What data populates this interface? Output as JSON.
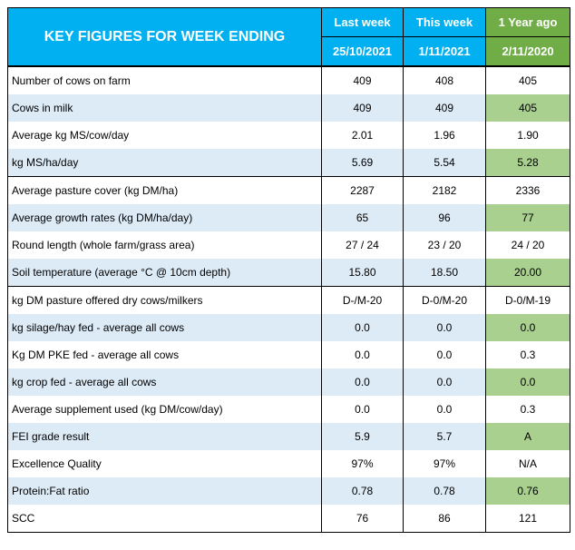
{
  "header": {
    "title": "KEY FIGURES FOR WEEK ENDING",
    "col_last": "Last week",
    "col_this": "This week",
    "col_year": "1 Year ago",
    "date_last": "25/10/2021",
    "date_this": "1/11/2021",
    "date_year": "2/11/2020"
  },
  "colors": {
    "header_blue": "#00b0f0",
    "header_green": "#70ad47",
    "row_alt_blue": "#ddebf7",
    "row_alt_green": "#a9d08e"
  },
  "rows": [
    {
      "label": "Number of cows on farm",
      "last": "409",
      "this": "408",
      "year": "405"
    },
    {
      "label": "Cows in milk",
      "last": "409",
      "this": "409",
      "year": "405"
    },
    {
      "label": "Average kg MS/cow/day",
      "last": "2.01",
      "this": "1.96",
      "year": "1.90"
    },
    {
      "label": "kg MS/ha/day",
      "last": "5.69",
      "this": "5.54",
      "year": "5.28"
    },
    {
      "label": "Average pasture cover (kg DM/ha)",
      "last": "2287",
      "this": "2182",
      "year": "2336"
    },
    {
      "label": "Average growth rates (kg DM/ha/day)",
      "last": "65",
      "this": "96",
      "year": "77"
    },
    {
      "label": "Round length (whole farm/grass area)",
      "last": "27 / 24",
      "this": "23 / 20",
      "year": "24 / 20"
    },
    {
      "label": "Soil temperature (average °C  @ 10cm depth)",
      "last": "15.80",
      "this": "18.50",
      "year": "20.00"
    },
    {
      "label": "kg DM pasture offered dry cows/milkers",
      "last": "D-/M-20",
      "this": "D-0/M-20",
      "year": "D-0/M-19"
    },
    {
      "label": "kg silage/hay fed - average all cows",
      "last": "0.0",
      "this": "0.0",
      "year": "0.0"
    },
    {
      "label": "Kg DM PKE fed - average all cows",
      "last": "0.0",
      "this": "0.0",
      "year": "0.3"
    },
    {
      "label": "kg crop fed - average all cows",
      "last": "0.0",
      "this": "0.0",
      "year": "0.0"
    },
    {
      "label": "Average supplement used (kg DM/cow/day)",
      "last": "0.0",
      "this": "0.0",
      "year": "0.3"
    },
    {
      "label": "FEI grade result",
      "last": "5.9",
      "this": "5.7",
      "year": "A"
    },
    {
      "label": "Excellence Quality",
      "last": "97%",
      "this": "97%",
      "year": "N/A"
    },
    {
      "label": "Protein:Fat ratio",
      "last": "0.78",
      "this": "0.78",
      "year": "0.76"
    },
    {
      "label": "SCC",
      "last": "76",
      "this": "86",
      "year": "121"
    }
  ]
}
